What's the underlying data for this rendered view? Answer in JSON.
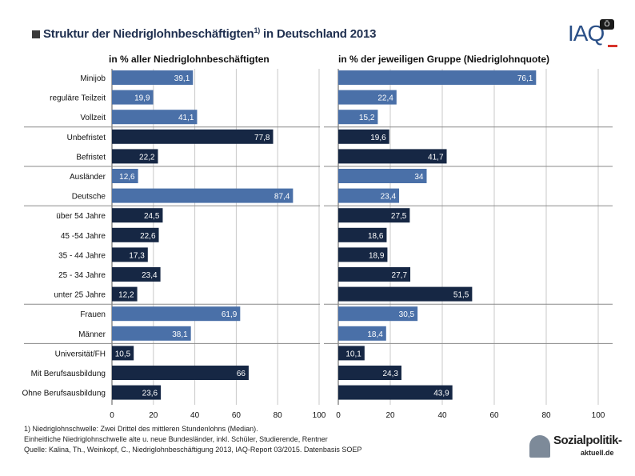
{
  "title": {
    "main": "Struktur der Niedriglohnbeschäftigten",
    "sup": "1)",
    "rest": " in Deutschland 2013"
  },
  "logo": {
    "text": "IAQ",
    "badge": "Ö"
  },
  "chart_data": {
    "type": "bar",
    "orientation": "horizontal",
    "categories": [
      "Minijob",
      "reguläre Teilzeit",
      "Vollzeit",
      "Unbefristet",
      "Befristet",
      "Ausländer",
      "Deutsche",
      "über 54 Jahre",
      "45 -54 Jahre",
      "35 - 44 Jahre",
      "25 - 34 Jahre",
      "unter 25 Jahre",
      "Frauen",
      "Männer",
      "Universität/FH",
      "Mit Berufsausbildung",
      "Ohne Berufsausbildung"
    ],
    "series": [
      {
        "name": "in % aller Niedriglohnbeschäftigten",
        "values": [
          39.1,
          19.9,
          41.1,
          77.8,
          22.2,
          12.6,
          87.4,
          24.5,
          22.6,
          17.3,
          23.4,
          12.2,
          61.9,
          38.1,
          10.5,
          66,
          23.6
        ],
        "labels": [
          "39,1",
          "19,9",
          "41,1",
          "77,8",
          "22,2",
          "12,6",
          "87,4",
          "24,5",
          "22,6",
          "17,3",
          "23,4",
          "12,2",
          "61,9",
          "38,1",
          "10,5",
          "66",
          "23,6"
        ]
      },
      {
        "name": "in % der jeweiligen Gruppe (Niedriglohnquote)",
        "values": [
          76.1,
          22.4,
          15.2,
          19.6,
          41.7,
          34,
          23.4,
          27.5,
          18.6,
          18.9,
          27.7,
          51.5,
          30.5,
          18.4,
          10.1,
          24.3,
          43.9
        ],
        "labels": [
          "76,1",
          "22,4",
          "15,2",
          "19,6",
          "41,7",
          "34",
          "23,4",
          "27,5",
          "18,6",
          "18,9",
          "27,7",
          "51,5",
          "30,5",
          "18,4",
          "10,1",
          "24,3",
          "43,9"
        ]
      }
    ],
    "bar_colors": [
      "light",
      "light",
      "light",
      "dark",
      "dark",
      "light",
      "light",
      "dark",
      "dark",
      "dark",
      "dark",
      "dark",
      "light",
      "light",
      "dark",
      "dark",
      "dark"
    ],
    "colors": {
      "light": "#4a70a8",
      "dark": "#162744"
    },
    "xlim": [
      0,
      100
    ],
    "xticks": [
      "0",
      "20",
      "40",
      "60",
      "80",
      "100"
    ],
    "group_starts": [
      3,
      5,
      7,
      12,
      14
    ]
  },
  "notes": [
    "1) Niedriglohnschwelle: Zwei Drittel des mittleren Stundenlohns (Median).",
    "Einheitliche Niedriglohnschwelle alte u. neue Bundesländer, inkl. Schüler, Studierende, Rentner",
    "Quelle: Kalina, Th., Weinkopf, C., Niedriglohnbeschäftigung 2013, IAQ-Report 03/2015. Datenbasis SOEP"
  ],
  "brand": {
    "line1": "Sozialpolitik-",
    "line2": "aktuell.de"
  }
}
